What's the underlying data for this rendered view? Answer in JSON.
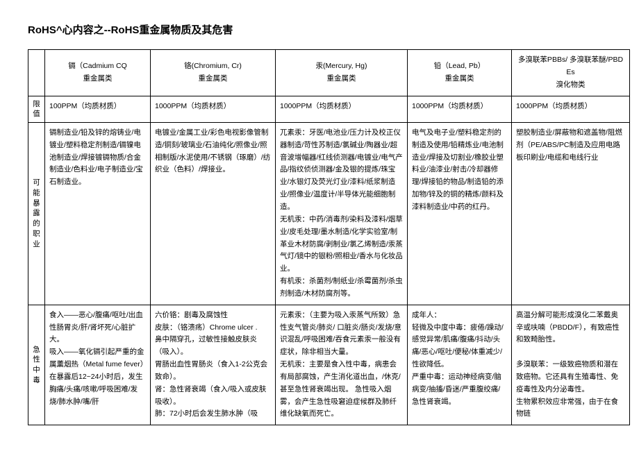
{
  "title": "RoHS^心内容之--RoHS重金属物质及其危害",
  "headers": {
    "cd": "镉（Cadmium CQ\n重金属类",
    "cr": "铬(Chromium, Cr)\n重金属类",
    "hg": "汞(Mercury, Hg)\n重金属类",
    "pb": "铅（Lead, Pb）\n重金属类",
    "pbb": "多溴联苯PBBs/ 多溴联苯醚/PBDEs\n溴化物类"
  },
  "rows": {
    "limit": {
      "label": "限值",
      "cd": "100PPM（均质材质）",
      "cr": "1000PPM（均质材质）",
      "hg": "1000PPM（均质材质）",
      "pb": "1000PPM（均质材质）",
      "pbb": "1000PPM（均质材质）"
    },
    "exposure": {
      "label": "可能暴露的职业",
      "cd": "镉制造业/铅及锌的熔铸业/电镀业/塑料稳定剂制造/镉镍电池制造业/焊接镀镉物质/合金制造业/色料业/电子制造业/宝石制造业。",
      "cr": "电镀业/金属工业/彩色电视影像管制造/铜刻/玻璃业/石油纯化/照像业/照相制版/水泥使用/不锈钢（琢磨）/纺织业（色料）/焊接业。",
      "hg": "兀素汞：牙医/电池业/压力计及校正仪器制造/苛性苏制造/氯碱业/陶器业/超音波增幅器/红线侦测器/电镀业/电气产品/指纹侦侦测器/金及银的提炼/珠宝业/水银灯及荧光灯业/漆料/纸浆制造业/照像业/温度计/半导体光能细胞制造。\n无机汞：中药/消毒剂/染料及漆料/烟草业/皮毛处理/墨水制造/化学实验室/制革业木材防腐/剥制业/氯乙烯制造/汞蒸气灯/镜中的银粉/照相业/香水与化妆品业。\n有机汞：杀菌剂/制纸业/杀霉菌剂/杀虫剂制造/木材防腐剂等。",
      "pb": "电气及电子业/塑料稳定剂的制造及使用/铅精炼业/电池制造业/焊接及切割业/橡胶业塑料业/油漆业/射击/冷却器修理/焊接铅的物品/制造铅的添加物/锌及的铜的精炼/颜料及漆料制造业/中药的红丹。",
      "pbb": "塑胶制造业/屏蔽物和遮盖物/阻燃剂（PE/ABS/PC制造及应用电路板印刷业/电缆和电线行业"
    },
    "acute": {
      "label": "急性中毒",
      "cd": "食入——恶心/腹痛/呕吐/出血性肠胃炎/肝/肾坏死/心脏扩大。\n吸入——氧化镉引起严重的金属薰烟热（Metal fume fever）在暴露后12~24小时后，发生胸痛/头痛/咳嗽/呼吸困难/发烧/肺水肿/嘴/肝",
      "cr": "六价铬：剧毒及腐蚀性\n皮肤：（铬溃疡）Chrome ulcer .\n鼻中隔穿孔，过敏性接触皮肤炎（吸入）。\n胃肠出血性胃肠炎（食入1-2公克会致命）。\n肾：急性肾衰竭（食入/吸入或皮肤吸收）。\n肺：72小时后会发生肺水肿（吸",
      "hg": "元素汞：（主要为吸入汞蒸气所致）急性支气管炎/肺炎/ 口脏炎/肠炎/发烧/意识混乱/呼吸困难/吞食元素汞一般没有症状，除非相当大量。\n无机汞：主要是食入性中毒，病患会有局部腐蚀，产生消化道出血，/休克/甚至急性肾衰竭出现。    急性吸入烟雾，会产生急性吸窘迫症候群及肺纤维化缺氧而死亡。",
      "pb": "成年人：\n轻微及中度中毒：疲倦/躁动/感觉异常/肌痛/腹痛/抖动/头痛/恶心/呕吐/便秘/体重减少/性欲降低。\n严重中毒：运动神经病变/脑病变/抽搐/昏迷/严重腹绞痛/急性肾衰竭。",
      "pbb": "高温分解可能形成溴化二苯戴奥辛或呋喃（PBDD/F），有致癌性和致畸胎性。\n\n多溴联苯：一级致癌物质和潜在致癌物。它还具有生殖毒性、免疫毒性及内分泌毒性。\n生物累积效应非常强，由于在食物链"
    }
  }
}
